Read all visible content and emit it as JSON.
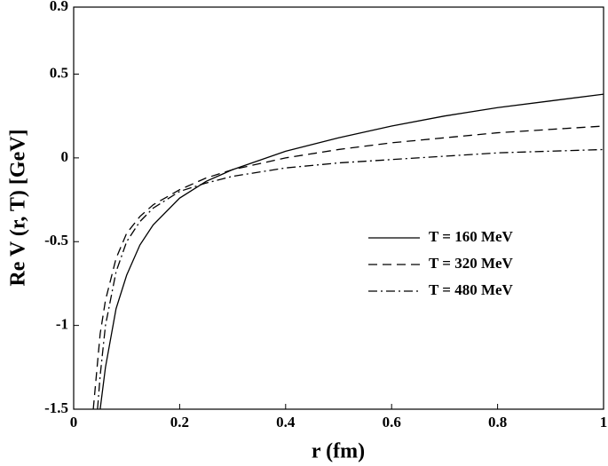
{
  "chart_data": {
    "type": "line",
    "x_label": "r (fm)",
    "y_label": "Re V (r, T) [GeV]",
    "xlim": [
      0,
      1
    ],
    "ylim": [
      -1.5,
      0.9
    ],
    "xticks": [
      0,
      0.2,
      0.4,
      0.6,
      0.8,
      1
    ],
    "yticks": [
      -1.5,
      -1,
      -0.5,
      0,
      0.5,
      0.9
    ],
    "legend": "center-right",
    "series": [
      {
        "name": "T = 160 MeV",
        "color": "#000000",
        "linestyle": "solid",
        "x": [
          0.05,
          0.06,
          0.08,
          0.1,
          0.125,
          0.15,
          0.2,
          0.25,
          0.3,
          0.4,
          0.5,
          0.6,
          0.7,
          0.8,
          0.9,
          1.0
        ],
        "values": [
          -1.5,
          -1.25,
          -0.9,
          -0.7,
          -0.52,
          -0.4,
          -0.24,
          -0.14,
          -0.07,
          0.04,
          0.12,
          0.19,
          0.25,
          0.3,
          0.34,
          0.38
        ]
      },
      {
        "name": "T = 320 MeV",
        "color": "#000000",
        "linestyle": "dashed",
        "x": [
          0.037,
          0.05,
          0.06,
          0.08,
          0.1,
          0.125,
          0.15,
          0.2,
          0.25,
          0.3,
          0.4,
          0.5,
          0.6,
          0.7,
          0.8,
          0.9,
          1.0
        ],
        "values": [
          -1.5,
          -1.05,
          -0.85,
          -0.6,
          -0.45,
          -0.35,
          -0.28,
          -0.19,
          -0.12,
          -0.07,
          0.0,
          0.05,
          0.09,
          0.12,
          0.15,
          0.17,
          0.19
        ]
      },
      {
        "name": "T = 480 MeV",
        "color": "#000000",
        "linestyle": "dashdot",
        "x": [
          0.045,
          0.05,
          0.06,
          0.08,
          0.1,
          0.125,
          0.15,
          0.2,
          0.25,
          0.3,
          0.4,
          0.5,
          0.6,
          0.7,
          0.8,
          0.9,
          1.0
        ],
        "values": [
          -1.5,
          -1.3,
          -1.0,
          -0.68,
          -0.5,
          -0.38,
          -0.3,
          -0.2,
          -0.15,
          -0.11,
          -0.06,
          -0.03,
          -0.01,
          0.01,
          0.03,
          0.04,
          0.05
        ]
      }
    ]
  }
}
